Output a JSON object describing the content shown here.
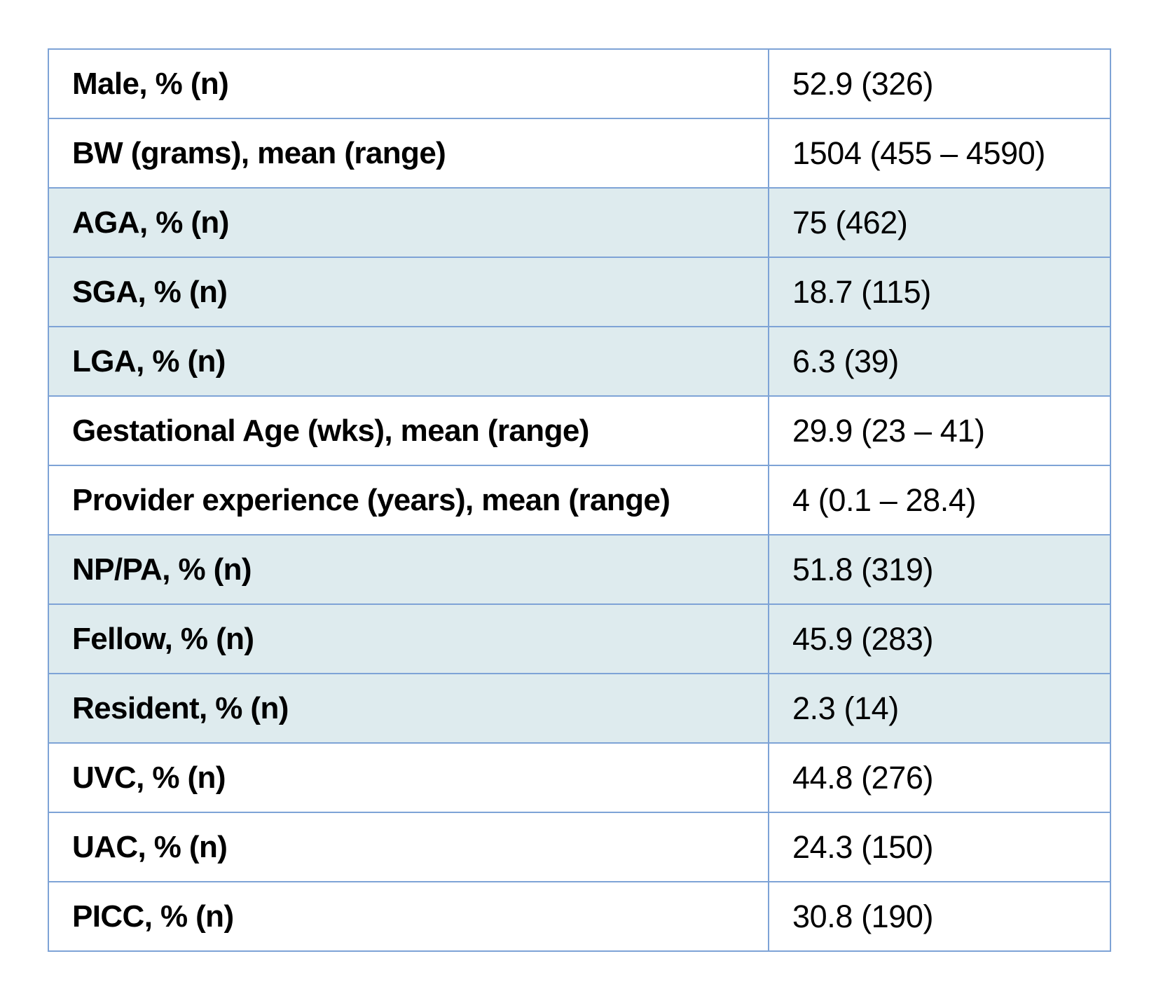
{
  "colors": {
    "border": "#7ea3d6",
    "shaded_row": "#deebee",
    "plain_row": "#ffffff",
    "text": "#000000"
  },
  "rows": [
    {
      "label": "Male, % (n)",
      "value": "52.9 (326)",
      "shaded": false
    },
    {
      "label": "BW (grams), mean (range)",
      "value": "1504 (455 – 4590)",
      "shaded": false
    },
    {
      "label": "AGA, % (n)",
      "value": "75 (462)",
      "shaded": true
    },
    {
      "label": "SGA, % (n)",
      "value": "18.7 (115)",
      "shaded": true
    },
    {
      "label": "LGA, % (n)",
      "value": "6.3 (39)",
      "shaded": true
    },
    {
      "label": "Gestational Age (wks), mean (range)",
      "value": "29.9 (23 – 41)",
      "shaded": false
    },
    {
      "label": "Provider experience (years), mean (range)",
      "value": "4 (0.1 – 28.4)",
      "shaded": false
    },
    {
      "label": "NP/PA, % (n)",
      "value": "51.8 (319)",
      "shaded": true
    },
    {
      "label": "Fellow, % (n)",
      "value": "45.9 (283)",
      "shaded": true
    },
    {
      "label": "Resident, % (n)",
      "value": "2.3 (14)",
      "shaded": true
    },
    {
      "label": "UVC, % (n)",
      "value": "44.8 (276)",
      "shaded": false
    },
    {
      "label": "UAC, % (n)",
      "value": "24.3 (150)",
      "shaded": false
    },
    {
      "label": "PICC, % (n)",
      "value": "30.8 (190)",
      "shaded": false
    }
  ]
}
